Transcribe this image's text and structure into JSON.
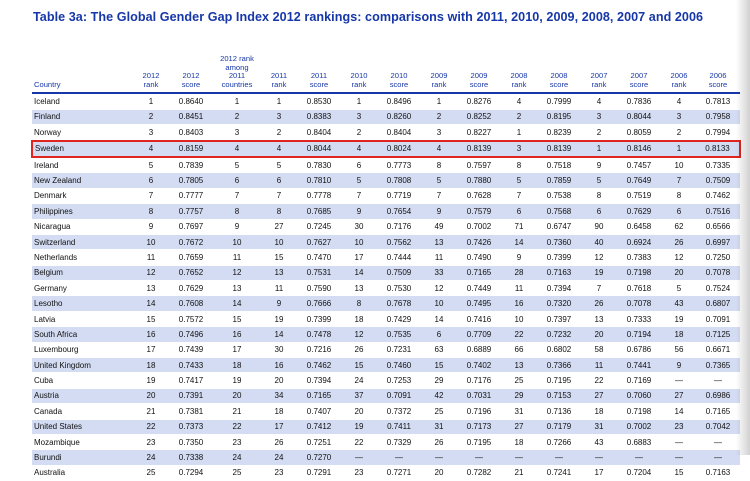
{
  "title": "Table 3a: The Global Gender Gap Index 2012 rankings: comparisons with 2011, 2010, 2009, 2008, 2007 and 2006",
  "headers": [
    "Country",
    "2012\nrank",
    "2012\nscore",
    "2012 rank\namong\n2011\ncountries",
    "2011\nrank",
    "2011\nscore",
    "2010\nrank",
    "2010\nscore",
    "2009\nrank",
    "2009\nscore",
    "2008\nrank",
    "2008\nscore",
    "2007\nrank",
    "2007\nscore",
    "2006\nrank",
    "2006\nscore"
  ],
  "rows": [
    [
      "Iceland",
      "1",
      "0.8640",
      "1",
      "1",
      "0.8530",
      "1",
      "0.8496",
      "1",
      "0.8276",
      "4",
      "0.7999",
      "4",
      "0.7836",
      "4",
      "0.7813"
    ],
    [
      "Finland",
      "2",
      "0.8451",
      "2",
      "3",
      "0.8383",
      "3",
      "0.8260",
      "2",
      "0.8252",
      "2",
      "0.8195",
      "3",
      "0.8044",
      "3",
      "0.7958"
    ],
    [
      "Norway",
      "3",
      "0.8403",
      "3",
      "2",
      "0.8404",
      "2",
      "0.8404",
      "3",
      "0.8227",
      "1",
      "0.8239",
      "2",
      "0.8059",
      "2",
      "0.7994"
    ],
    [
      "Sweden",
      "4",
      "0.8159",
      "4",
      "4",
      "0.8044",
      "4",
      "0.8024",
      "4",
      "0.8139",
      "3",
      "0.8139",
      "1",
      "0.8146",
      "1",
      "0.8133"
    ],
    [
      "Ireland",
      "5",
      "0.7839",
      "5",
      "5",
      "0.7830",
      "6",
      "0.7773",
      "8",
      "0.7597",
      "8",
      "0.7518",
      "9",
      "0.7457",
      "10",
      "0.7335"
    ],
    [
      "New Zealand",
      "6",
      "0.7805",
      "6",
      "6",
      "0.7810",
      "5",
      "0.7808",
      "5",
      "0.7880",
      "5",
      "0.7859",
      "5",
      "0.7649",
      "7",
      "0.7509"
    ],
    [
      "Denmark",
      "7",
      "0.7777",
      "7",
      "7",
      "0.7778",
      "7",
      "0.7719",
      "7",
      "0.7628",
      "7",
      "0.7538",
      "8",
      "0.7519",
      "8",
      "0.7462"
    ],
    [
      "Philippines",
      "8",
      "0.7757",
      "8",
      "8",
      "0.7685",
      "9",
      "0.7654",
      "9",
      "0.7579",
      "6",
      "0.7568",
      "6",
      "0.7629",
      "6",
      "0.7516"
    ],
    [
      "Nicaragua",
      "9",
      "0.7697",
      "9",
      "27",
      "0.7245",
      "30",
      "0.7176",
      "49",
      "0.7002",
      "71",
      "0.6747",
      "90",
      "0.6458",
      "62",
      "0.6566"
    ],
    [
      "Switzerland",
      "10",
      "0.7672",
      "10",
      "10",
      "0.7627",
      "10",
      "0.7562",
      "13",
      "0.7426",
      "14",
      "0.7360",
      "40",
      "0.6924",
      "26",
      "0.6997"
    ],
    [
      "Netherlands",
      "11",
      "0.7659",
      "11",
      "15",
      "0.7470",
      "17",
      "0.7444",
      "11",
      "0.7490",
      "9",
      "0.7399",
      "12",
      "0.7383",
      "12",
      "0.7250"
    ],
    [
      "Belgium",
      "12",
      "0.7652",
      "12",
      "13",
      "0.7531",
      "14",
      "0.7509",
      "33",
      "0.7165",
      "28",
      "0.7163",
      "19",
      "0.7198",
      "20",
      "0.7078"
    ],
    [
      "Germany",
      "13",
      "0.7629",
      "13",
      "11",
      "0.7590",
      "13",
      "0.7530",
      "12",
      "0.7449",
      "11",
      "0.7394",
      "7",
      "0.7618",
      "5",
      "0.7524"
    ],
    [
      "Lesotho",
      "14",
      "0.7608",
      "14",
      "9",
      "0.7666",
      "8",
      "0.7678",
      "10",
      "0.7495",
      "16",
      "0.7320",
      "26",
      "0.7078",
      "43",
      "0.6807"
    ],
    [
      "Latvia",
      "15",
      "0.7572",
      "15",
      "19",
      "0.7399",
      "18",
      "0.7429",
      "14",
      "0.7416",
      "10",
      "0.7397",
      "13",
      "0.7333",
      "19",
      "0.7091"
    ],
    [
      "South Africa",
      "16",
      "0.7496",
      "16",
      "14",
      "0.7478",
      "12",
      "0.7535",
      "6",
      "0.7709",
      "22",
      "0.7232",
      "20",
      "0.7194",
      "18",
      "0.7125"
    ],
    [
      "Luxembourg",
      "17",
      "0.7439",
      "17",
      "30",
      "0.7216",
      "26",
      "0.7231",
      "63",
      "0.6889",
      "66",
      "0.6802",
      "58",
      "0.6786",
      "56",
      "0.6671"
    ],
    [
      "United Kingdom",
      "18",
      "0.7433",
      "18",
      "16",
      "0.7462",
      "15",
      "0.7460",
      "15",
      "0.7402",
      "13",
      "0.7366",
      "11",
      "0.7441",
      "9",
      "0.7365"
    ],
    [
      "Cuba",
      "19",
      "0.7417",
      "19",
      "20",
      "0.7394",
      "24",
      "0.7253",
      "29",
      "0.7176",
      "25",
      "0.7195",
      "22",
      "0.7169",
      "—",
      "—"
    ],
    [
      "Austria",
      "20",
      "0.7391",
      "20",
      "34",
      "0.7165",
      "37",
      "0.7091",
      "42",
      "0.7031",
      "29",
      "0.7153",
      "27",
      "0.7060",
      "27",
      "0.6986"
    ],
    [
      "Canada",
      "21",
      "0.7381",
      "21",
      "18",
      "0.7407",
      "20",
      "0.7372",
      "25",
      "0.7196",
      "31",
      "0.7136",
      "18",
      "0.7198",
      "14",
      "0.7165"
    ],
    [
      "United States",
      "22",
      "0.7373",
      "22",
      "17",
      "0.7412",
      "19",
      "0.7411",
      "31",
      "0.7173",
      "27",
      "0.7179",
      "31",
      "0.7002",
      "23",
      "0.7042"
    ],
    [
      "Mozambique",
      "23",
      "0.7350",
      "23",
      "26",
      "0.7251",
      "22",
      "0.7329",
      "26",
      "0.7195",
      "18",
      "0.7266",
      "43",
      "0.6883",
      "—",
      "—"
    ],
    [
      "Burundi",
      "24",
      "0.7338",
      "24",
      "24",
      "0.7270",
      "—",
      "—",
      "—",
      "—",
      "—",
      "—",
      "—",
      "—",
      "—",
      "—"
    ],
    [
      "Australia",
      "25",
      "0.7294",
      "25",
      "23",
      "0.7291",
      "23",
      "0.7271",
      "20",
      "0.7282",
      "21",
      "0.7241",
      "17",
      "0.7204",
      "15",
      "0.7163"
    ]
  ],
  "highlighted_country": "Sweden",
  "colors": {
    "title": "#1637a8",
    "header_text": "#1637a8",
    "header_rule": "#1637a8",
    "row_shade": "#d3dcf2",
    "highlight_border": "#e0241f"
  }
}
